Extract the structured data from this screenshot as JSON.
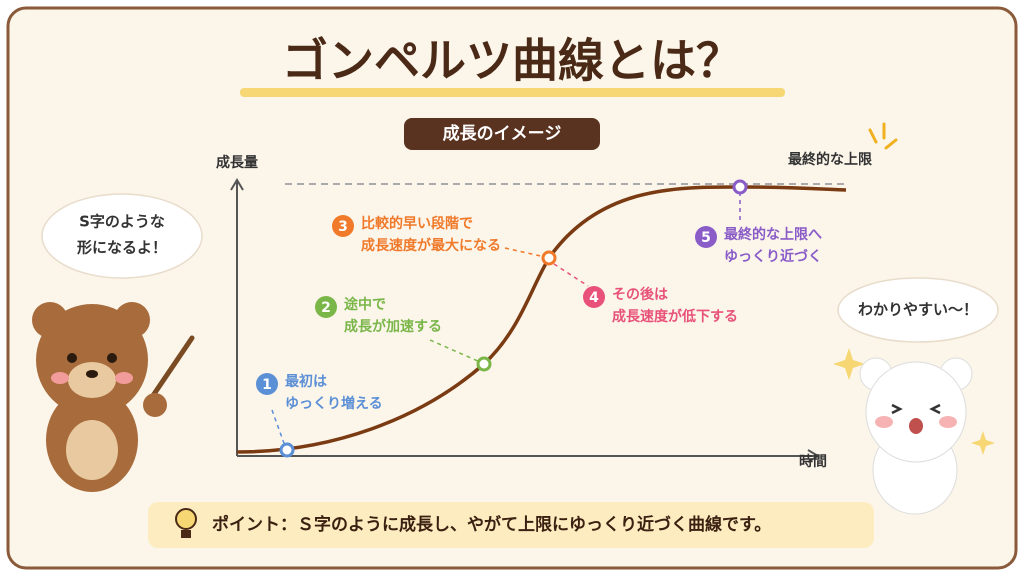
{
  "title": "ゴンペルツ曲線とは？",
  "badge": "成長のイメージ",
  "axes": {
    "y_label": "成長量",
    "x_label": "時間"
  },
  "upper_limit_label": "最終的な上限",
  "steps": [
    {
      "number": "1",
      "lines": [
        "最初は",
        "ゆっくり増える"
      ]
    },
    {
      "number": "2",
      "lines": [
        "途中で",
        "成長が加速する"
      ]
    },
    {
      "number": "3",
      "lines": [
        "比較的早い段階で",
        "成長速度が最大になる"
      ]
    },
    {
      "number": "4",
      "lines": [
        "その後は",
        "成長速度が低下する"
      ]
    },
    {
      "number": "5",
      "lines": [
        "最終的な上限へ",
        "ゆっくり近づく"
      ]
    }
  ],
  "bubbles": {
    "left": [
      "S字のような",
      "形になるよ！"
    ],
    "right": "わかりやすい〜！"
  },
  "point": "ポイント：Ｓ字のように成長し、やがて上限にゆっくり近づく曲線です。"
}
